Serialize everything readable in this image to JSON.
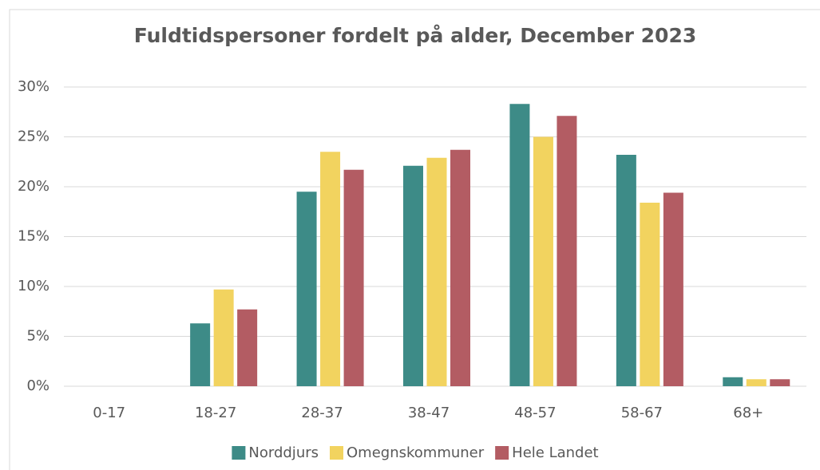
{
  "chart_data": {
    "type": "bar",
    "title": "Fuldtidspersoner fordelt på alder, December 2023",
    "categories": [
      "0-17",
      "18-27",
      "28-37",
      "38-47",
      "48-57",
      "58-67",
      "68+"
    ],
    "series": [
      {
        "name": "Norddjurs",
        "color": "#3d8b87",
        "values": [
          0,
          6.3,
          19.5,
          22.1,
          28.3,
          23.2,
          0.9
        ]
      },
      {
        "name": "Omegnskommuner",
        "color": "#f2d35f",
        "values": [
          0,
          9.7,
          23.5,
          22.9,
          25.0,
          18.4,
          0.7
        ]
      },
      {
        "name": "Hele Landet",
        "color": "#b35c63",
        "values": [
          0,
          7.7,
          21.7,
          23.7,
          27.1,
          19.4,
          0.7
        ]
      }
    ],
    "ylim": [
      0,
      30
    ],
    "yticks": [
      {
        "value": 0,
        "label": "0%"
      },
      {
        "value": 5,
        "label": "5%"
      },
      {
        "value": 10,
        "label": "10%"
      },
      {
        "value": 15,
        "label": "15%"
      },
      {
        "value": 20,
        "label": "20%"
      },
      {
        "value": 25,
        "label": "25%"
      },
      {
        "value": 30,
        "label": "30%"
      }
    ],
    "grid": true,
    "legend": "bottom"
  }
}
